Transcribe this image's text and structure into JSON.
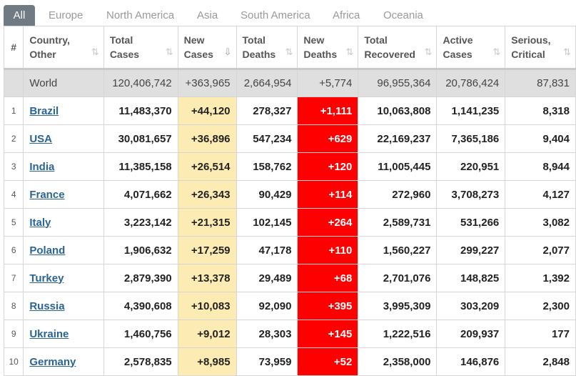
{
  "tabs": [
    "All",
    "Europe",
    "North America",
    "Asia",
    "South America",
    "Africa",
    "Oceania"
  ],
  "columns": [
    {
      "l1": "#",
      "l2": ""
    },
    {
      "l1": "Country,",
      "l2": "Other"
    },
    {
      "l1": "Total",
      "l2": "Cases"
    },
    {
      "l1": "New",
      "l2": "Cases"
    },
    {
      "l1": "Total",
      "l2": "Deaths"
    },
    {
      "l1": "New",
      "l2": "Deaths"
    },
    {
      "l1": "Total",
      "l2": "Recovered"
    },
    {
      "l1": "Active",
      "l2": "Cases"
    },
    {
      "l1": "Serious,",
      "l2": "Critical"
    }
  ],
  "sort_icon": "⇅",
  "sort_active_icon": "⇩",
  "world": {
    "country": "World",
    "total_cases": "120,406,742",
    "new_cases": "+363,965",
    "total_deaths": "2,664,954",
    "new_deaths": "+5,774",
    "total_recovered": "96,955,364",
    "active_cases": "20,786,424",
    "serious": "87,831"
  },
  "rows": [
    {
      "n": "1",
      "country": "Brazil",
      "total_cases": "11,483,370",
      "new_cases": "+44,120",
      "total_deaths": "278,327",
      "new_deaths": "+1,111",
      "total_recovered": "10,063,808",
      "active_cases": "1,141,235",
      "serious": "8,318"
    },
    {
      "n": "2",
      "country": "USA",
      "total_cases": "30,081,657",
      "new_cases": "+36,896",
      "total_deaths": "547,234",
      "new_deaths": "+629",
      "total_recovered": "22,169,237",
      "active_cases": "7,365,186",
      "serious": "9,404"
    },
    {
      "n": "3",
      "country": "India",
      "total_cases": "11,385,158",
      "new_cases": "+26,514",
      "total_deaths": "158,762",
      "new_deaths": "+120",
      "total_recovered": "11,005,445",
      "active_cases": "220,951",
      "serious": "8,944"
    },
    {
      "n": "4",
      "country": "France",
      "total_cases": "4,071,662",
      "new_cases": "+26,343",
      "total_deaths": "90,429",
      "new_deaths": "+114",
      "total_recovered": "272,960",
      "active_cases": "3,708,273",
      "serious": "4,127"
    },
    {
      "n": "5",
      "country": "Italy",
      "total_cases": "3,223,142",
      "new_cases": "+21,315",
      "total_deaths": "102,145",
      "new_deaths": "+264",
      "total_recovered": "2,589,731",
      "active_cases": "531,266",
      "serious": "3,082"
    },
    {
      "n": "6",
      "country": "Poland",
      "total_cases": "1,906,632",
      "new_cases": "+17,259",
      "total_deaths": "47,178",
      "new_deaths": "+110",
      "total_recovered": "1,560,227",
      "active_cases": "299,227",
      "serious": "2,077"
    },
    {
      "n": "7",
      "country": "Turkey",
      "total_cases": "2,879,390",
      "new_cases": "+13,378",
      "total_deaths": "29,489",
      "new_deaths": "+68",
      "total_recovered": "2,701,076",
      "active_cases": "148,825",
      "serious": "1,392"
    },
    {
      "n": "8",
      "country": "Russia",
      "total_cases": "4,390,608",
      "new_cases": "+10,083",
      "total_deaths": "92,090",
      "new_deaths": "+395",
      "total_recovered": "3,995,309",
      "active_cases": "303,209",
      "serious": "2,300"
    },
    {
      "n": "9",
      "country": "Ukraine",
      "total_cases": "1,460,756",
      "new_cases": "+9,012",
      "total_deaths": "28,303",
      "new_deaths": "+145",
      "total_recovered": "1,222,516",
      "active_cases": "209,937",
      "serious": "177"
    },
    {
      "n": "10",
      "country": "Germany",
      "total_cases": "2,578,835",
      "new_cases": "+8,985",
      "total_deaths": "73,959",
      "new_deaths": "+52",
      "total_recovered": "2,358,000",
      "active_cases": "146,876",
      "serious": "2,848"
    }
  ],
  "colors": {
    "new_cases_bg": "#fcecb3",
    "new_deaths_bg": "#ff0000",
    "link": "#2a6496",
    "active_tab": "#6f7a82"
  }
}
